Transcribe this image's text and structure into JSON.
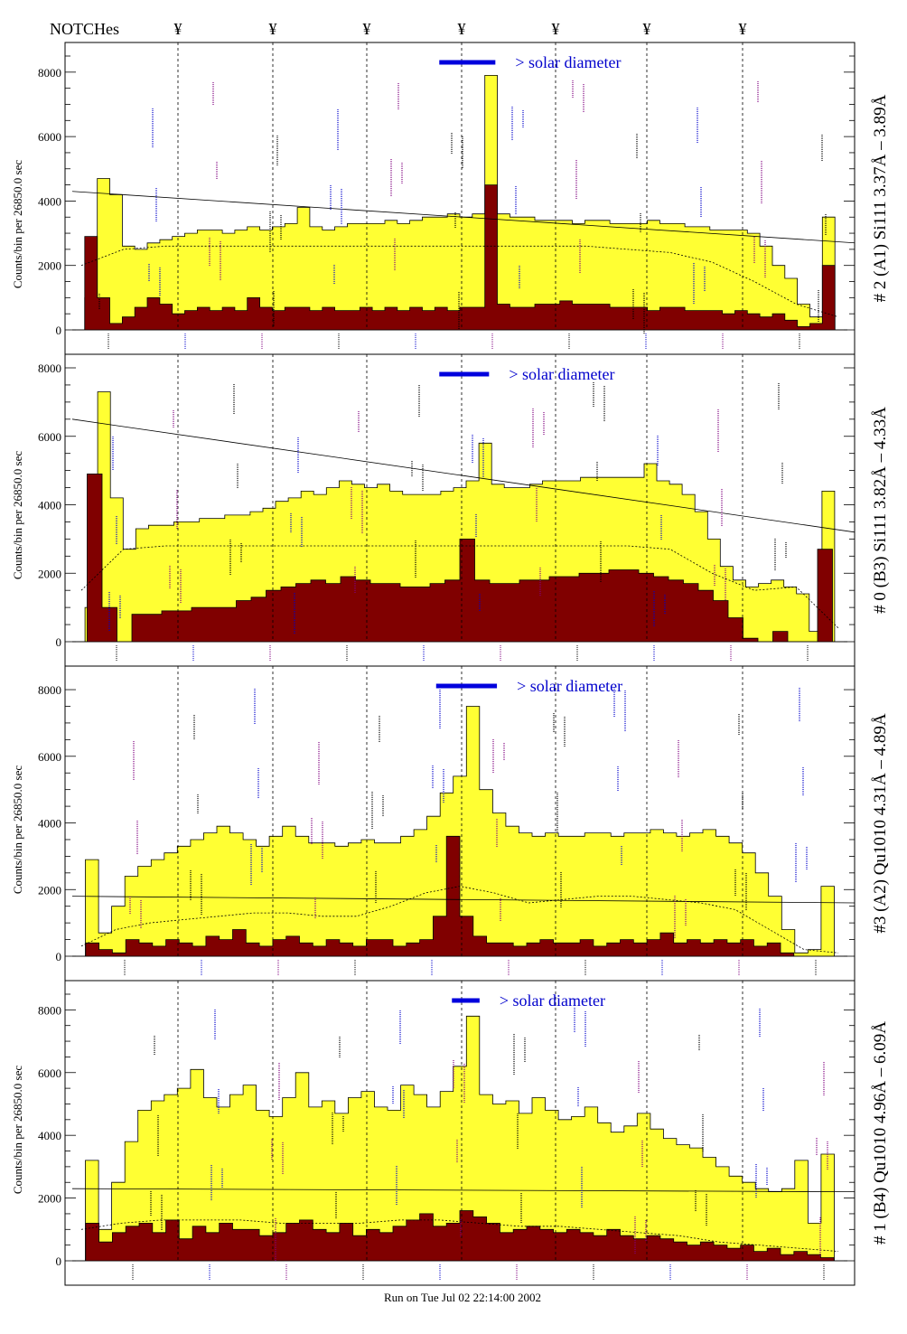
{
  "header": {
    "notches_label": "NOTCHes",
    "notch_symbol": "¥",
    "notch_count": 7
  },
  "footer": {
    "run_label": "Run on Tue Jul 02 22:14:00 2002"
  },
  "annotation": {
    "solar_label": "> solar diameter"
  },
  "colors": {
    "outer": "#ffff33",
    "inner": "#800000",
    "solar_bar": "#0000dd",
    "solar_text": "#0000cc",
    "axis": "#000000",
    "line_labels": [
      "#000000",
      "#0000cc",
      "#800080"
    ]
  },
  "chart_data": [
    {
      "type": "area",
      "title": "# 2 (A1) Si111  3.37Å – 3.89Å",
      "ylabel": "Counts/bin per  26850.0 sec",
      "ylim": [
        0,
        8500
      ],
      "yticks": [
        "0",
        "2000",
        "4000",
        "6000",
        "8000"
      ],
      "series": [
        {
          "name": "",
          "type": "area",
          "values": [
            0,
            1000,
            4700,
            4200,
            2600,
            2500,
            2700,
            2800,
            2900,
            3000,
            3100,
            3100,
            3000,
            3100,
            3200,
            3100,
            3200,
            3300,
            3800,
            3200,
            3100,
            3200,
            3300,
            3300,
            3300,
            3400,
            3300,
            3400,
            3500,
            3500,
            3600,
            3500,
            3600,
            7900,
            3600,
            3500,
            3500,
            3400,
            3400,
            3400,
            3300,
            3400,
            3400,
            3300,
            3300,
            3300,
            3400,
            3300,
            3300,
            3200,
            3200,
            3100,
            3100,
            3100,
            3000,
            2600,
            2000,
            1600,
            800,
            400,
            3500,
            0
          ]
        },
        {
          "name": "",
          "type": "area",
          "values": [
            0,
            2900,
            1000,
            200,
            400,
            700,
            1000,
            800,
            500,
            600,
            700,
            600,
            700,
            600,
            1000,
            700,
            600,
            700,
            700,
            600,
            700,
            600,
            600,
            700,
            600,
            700,
            600,
            700,
            600,
            700,
            600,
            700,
            700,
            4500,
            800,
            700,
            700,
            800,
            800,
            900,
            800,
            800,
            800,
            700,
            700,
            700,
            600,
            700,
            700,
            600,
            600,
            600,
            500,
            600,
            500,
            400,
            500,
            300,
            100,
            200,
            2000,
            0
          ]
        },
        {
          "name": "",
          "type": "line",
          "values": [
            2000,
            2500,
            2600,
            2600,
            2600,
            2600,
            2600,
            2600,
            2600,
            2600,
            2600,
            2600,
            2600,
            2500,
            2400,
            2100,
            1500,
            800,
            400
          ]
        },
        {
          "name": "",
          "type": "trend",
          "values": [
            4300,
            2700
          ]
        }
      ],
      "solar_bar": [
        0.474,
        0.545
      ]
    },
    {
      "type": "area",
      "title": "# 0 (B3) Si111  3.82Å – 4.33Å",
      "ylabel": "Counts/bin per  26850.0 sec",
      "ylim": [
        0,
        8000
      ],
      "yticks": [
        "0",
        "2000",
        "4000",
        "6000",
        "8000"
      ],
      "series": [
        {
          "name": "",
          "type": "area",
          "values": [
            0,
            1000,
            7300,
            4200,
            2700,
            3300,
            3400,
            3400,
            3500,
            3500,
            3600,
            3600,
            3700,
            3700,
            3800,
            3900,
            4100,
            4200,
            4400,
            4300,
            4500,
            4700,
            4600,
            4500,
            4600,
            4400,
            4300,
            4300,
            4300,
            4400,
            4500,
            4700,
            5800,
            4600,
            4500,
            4500,
            4600,
            4700,
            4700,
            4700,
            4800,
            4800,
            4800,
            4800,
            4800,
            5200,
            4700,
            4600,
            4300,
            3800,
            3000,
            2200,
            1800,
            1600,
            1700,
            1800,
            1600,
            1400,
            300,
            4400,
            0
          ]
        },
        {
          "name": "",
          "type": "area",
          "values": [
            0,
            4900,
            1000,
            0,
            800,
            800,
            900,
            900,
            1000,
            1000,
            1000,
            1200,
            1300,
            1500,
            1600,
            1700,
            1800,
            1700,
            1900,
            1800,
            1700,
            1700,
            1600,
            1600,
            1700,
            1800,
            3000,
            1800,
            1700,
            1700,
            1800,
            1800,
            1900,
            1900,
            2000,
            2000,
            2100,
            2100,
            2000,
            1900,
            1800,
            1700,
            1500,
            1200,
            700,
            100,
            0,
            300,
            0,
            0,
            2700,
            0
          ]
        },
        {
          "name": "",
          "type": "line",
          "values": [
            1500,
            2700,
            2800,
            2800,
            2800,
            2800,
            2800,
            2800,
            2800,
            2800,
            2800,
            2800,
            2800,
            2800,
            2700,
            2000,
            1500,
            1600,
            400
          ]
        },
        {
          "name": "",
          "type": "trend",
          "values": [
            6500,
            3200
          ]
        }
      ],
      "solar_bar": [
        0.474,
        0.537
      ]
    },
    {
      "type": "area",
      "title": "#3 (A2) Qu1010  4.31Å – 4.89Å",
      "ylabel": "Counts/bin per  26850.0 sec",
      "ylim": [
        0,
        8300
      ],
      "yticks": [
        "0",
        "2000",
        "4000",
        "6000",
        "8000"
      ],
      "series": [
        {
          "name": "",
          "type": "area",
          "values": [
            0,
            2900,
            700,
            1500,
            2400,
            2700,
            2900,
            3100,
            3300,
            3500,
            3700,
            3900,
            3700,
            3500,
            3300,
            3600,
            3900,
            3600,
            3400,
            3400,
            3300,
            3400,
            3500,
            3400,
            3400,
            3600,
            3800,
            4200,
            4900,
            5400,
            7500,
            5000,
            4300,
            3900,
            3700,
            3600,
            3700,
            3600,
            3600,
            3700,
            3700,
            3600,
            3700,
            3700,
            3800,
            3700,
            3600,
            3700,
            3800,
            3600,
            3400,
            3100,
            2500,
            1800,
            800,
            100,
            200,
            2100,
            0
          ]
        },
        {
          "name": "",
          "type": "area",
          "values": [
            0,
            400,
            200,
            100,
            500,
            400,
            300,
            500,
            400,
            300,
            600,
            500,
            800,
            400,
            300,
            500,
            600,
            400,
            300,
            500,
            400,
            300,
            500,
            500,
            300,
            400,
            500,
            1200,
            3600,
            1200,
            600,
            400,
            400,
            300,
            400,
            500,
            400,
            400,
            500,
            300,
            400,
            500,
            400,
            500,
            700,
            400,
            500,
            400,
            500,
            400,
            500,
            300,
            400,
            100,
            0,
            0,
            0,
            0
          ]
        },
        {
          "name": "",
          "type": "line",
          "values": [
            300,
            800,
            1000,
            1100,
            1200,
            1300,
            1300,
            1200,
            1200,
            1500,
            1900,
            2100,
            1900,
            1600,
            1700,
            1800,
            1800,
            1700,
            1600,
            1400,
            800,
            200,
            100
          ]
        },
        {
          "name": "",
          "type": "trend",
          "values": [
            1800,
            1600
          ]
        }
      ],
      "solar_bar": [
        0.47,
        0.547
      ]
    },
    {
      "type": "area",
      "title": "# 1 (B4) Qu1010 4.96Å – 6.09Å",
      "ylabel": "Counts/bin per  26850.0 sec",
      "ylim": [
        0,
        8500
      ],
      "yticks": [
        "0",
        "2000",
        "4000",
        "6000",
        "8000"
      ],
      "series": [
        {
          "name": "",
          "type": "area",
          "values": [
            0,
            3200,
            1000,
            2500,
            3800,
            4800,
            5100,
            5300,
            5500,
            6100,
            5200,
            4900,
            5300,
            5600,
            4800,
            4600,
            5200,
            6000,
            4900,
            5100,
            4700,
            5200,
            5400,
            4900,
            4800,
            5600,
            5300,
            4900,
            5400,
            6200,
            7800,
            5300,
            5000,
            5100,
            4700,
            5200,
            4800,
            4500,
            4600,
            4900,
            4400,
            4100,
            4300,
            4700,
            4200,
            3900,
            3700,
            3600,
            3300,
            3000,
            2700,
            2500,
            2300,
            2200,
            2300,
            3200,
            1200,
            3400,
            0
          ]
        },
        {
          "name": "",
          "type": "area",
          "values": [
            0,
            1200,
            600,
            900,
            1100,
            1200,
            900,
            1300,
            700,
            1100,
            900,
            1200,
            1000,
            1000,
            800,
            900,
            1200,
            1300,
            1000,
            900,
            1200,
            800,
            1000,
            900,
            1100,
            1300,
            1500,
            1100,
            1200,
            1600,
            1400,
            1200,
            900,
            1000,
            1100,
            1000,
            900,
            1000,
            900,
            800,
            1000,
            800,
            700,
            800,
            700,
            600,
            500,
            600,
            500,
            400,
            500,
            300,
            400,
            200,
            300,
            200,
            100,
            0
          ]
        },
        {
          "name": "",
          "type": "line",
          "values": [
            1000,
            1200,
            1300,
            1300,
            1300,
            1200,
            1200,
            1200,
            1300,
            1300,
            1200,
            1100,
            1100,
            1000,
            900,
            800,
            600,
            500,
            400,
            300
          ]
        },
        {
          "name": "",
          "type": "trend",
          "values": [
            2300,
            2200
          ]
        }
      ],
      "solar_bar": [
        0.49,
        0.525
      ]
    }
  ]
}
